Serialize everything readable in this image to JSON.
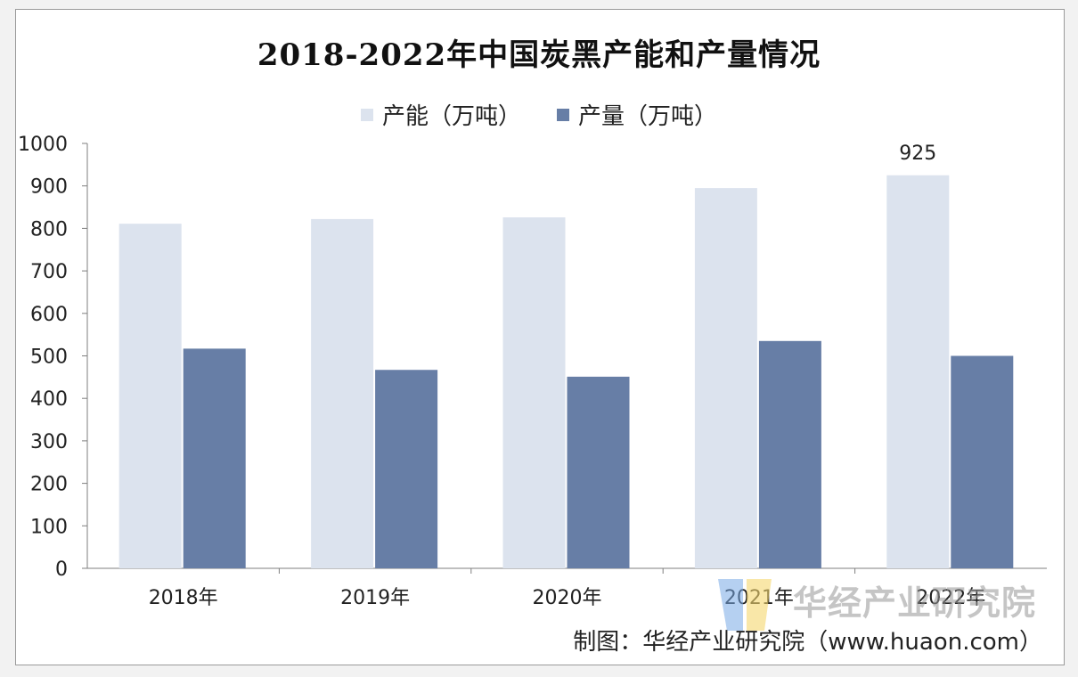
{
  "colors": {
    "capacity": "#dce3ee",
    "production": "#677ea6",
    "axis": "#7f7f7f"
  },
  "chart_data": {
    "type": "bar",
    "title": "2018-2022年中国炭黑产能和产量情况",
    "categories": [
      "2018年",
      "2019年",
      "2020年",
      "2021年",
      "2022年"
    ],
    "series": [
      {
        "name": "产能（万吨）",
        "values": [
          811,
          822,
          826,
          895,
          925
        ]
      },
      {
        "name": "产量（万吨）",
        "values": [
          517,
          467,
          451,
          535,
          500
        ]
      }
    ],
    "ylim": [
      0,
      1000
    ],
    "yticks": [
      "0",
      "100",
      "200",
      "300",
      "400",
      "500",
      "600",
      "700",
      "800",
      "900",
      "1000"
    ],
    "data_labels": [
      {
        "series": 0,
        "index": 4,
        "text": "925"
      }
    ],
    "legend": "top-center",
    "grid": false
  },
  "watermark": {
    "text": "华经产业研究院"
  },
  "credit": {
    "text": "制图：华经产业研究院（www.huaon.com）"
  }
}
